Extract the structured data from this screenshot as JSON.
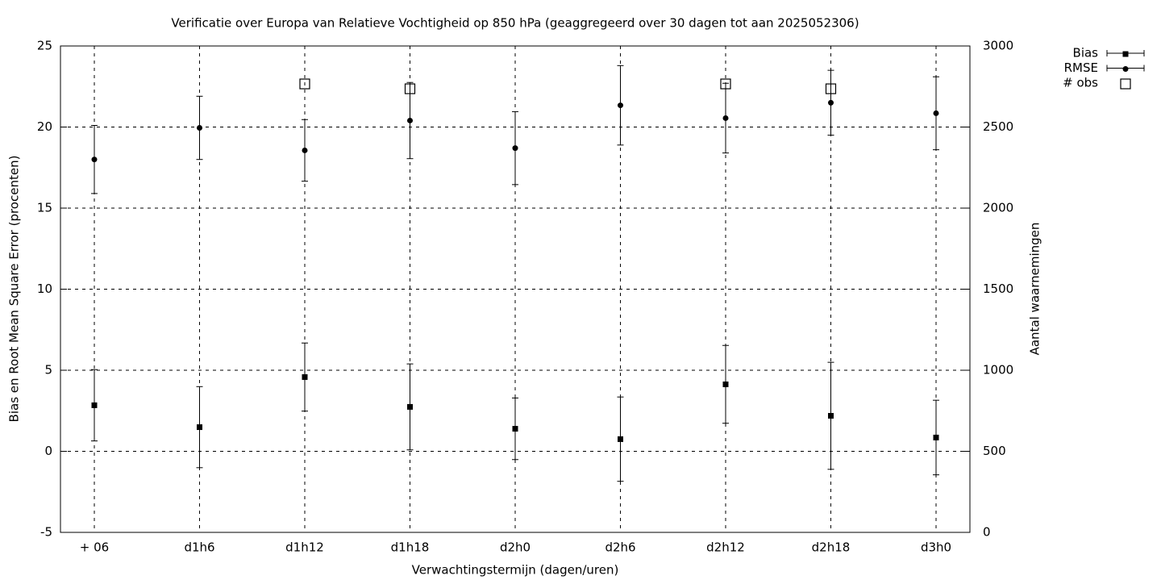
{
  "chart_data": {
    "type": "errorbar",
    "title": "Verificatie over Europa van Relatieve Vochtigheid op 850 hPa (geaggregeerd over 30 dagen tot aan 2025052306)",
    "x_label": "Verwachtingstermijn (dagen/uren)",
    "y_label": "Bias en Root Mean Square Error (procenten)",
    "y2_label": "Aantal waarnemingen",
    "categories": [
      "+ 06",
      "d1h6",
      "d1h12",
      "d1h18",
      "d2h0",
      "d2h6",
      "d2h12",
      "d2h18",
      "d3h0"
    ],
    "series": [
      {
        "name": "Bias",
        "color": "#000000",
        "marker": "square",
        "values": [
          2.84,
          1.49,
          4.58,
          2.74,
          1.39,
          0.75,
          4.13,
          2.19,
          0.85
        ],
        "errors": [
          2.2,
          2.5,
          2.1,
          2.65,
          1.9,
          2.6,
          2.4,
          3.3,
          2.3
        ]
      },
      {
        "name": "RMSE",
        "color": "#000000",
        "marker": "circle",
        "values": [
          18.0,
          19.95,
          18.56,
          20.4,
          18.7,
          21.34,
          20.55,
          21.5,
          20.85
        ],
        "errors": [
          2.1,
          1.95,
          1.9,
          2.35,
          2.25,
          2.45,
          2.15,
          2.0,
          2.25
        ]
      },
      {
        "name": "# obs",
        "color": "#000000",
        "marker": "open-square",
        "axis": "y2",
        "values": [
          null,
          null,
          2766,
          2736,
          null,
          null,
          2766,
          2736,
          null
        ]
      }
    ],
    "ylim": [
      -5,
      25
    ],
    "yticks": [
      -5,
      0,
      5,
      10,
      15,
      20,
      25
    ],
    "y2lim": [
      0,
      3000
    ],
    "y2ticks": [
      0,
      500,
      1000,
      1500,
      2000,
      2500,
      3000
    ],
    "grid": true,
    "legend": "outside-top-right"
  }
}
